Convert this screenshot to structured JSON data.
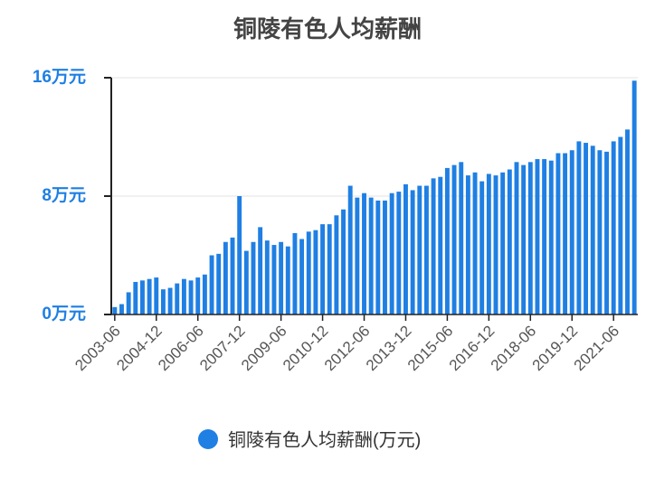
{
  "chart_data": {
    "type": "bar",
    "title": "铜陵有色人均薪酬",
    "categories": [
      "2003-06",
      null,
      null,
      null,
      null,
      null,
      "2004-12",
      null,
      null,
      null,
      null,
      null,
      "2006-06",
      null,
      null,
      null,
      null,
      null,
      "2007-12",
      null,
      null,
      null,
      null,
      null,
      "2009-06",
      null,
      null,
      null,
      null,
      null,
      "2010-12",
      null,
      null,
      null,
      null,
      null,
      "2012-06",
      null,
      null,
      null,
      null,
      null,
      "2013-12",
      null,
      null,
      null,
      null,
      null,
      "2015-06",
      null,
      null,
      null,
      null,
      null,
      "2016-12",
      null,
      null,
      null,
      null,
      null,
      "2018-06",
      null,
      null,
      null,
      null,
      null,
      "2019-12",
      null,
      null,
      null,
      null,
      null,
      "2021-06",
      null,
      null,
      null
    ],
    "series": [
      {
        "name": "铜陵有色人均薪酬(万元)",
        "color": "#1f7fe3",
        "values": [
          0.5,
          0.7,
          1.5,
          2.2,
          2.3,
          2.4,
          2.5,
          1.7,
          1.8,
          2.1,
          2.4,
          2.3,
          2.5,
          2.7,
          4.0,
          4.1,
          4.9,
          5.2,
          8.0,
          4.3,
          4.9,
          5.9,
          5.0,
          4.7,
          4.9,
          4.6,
          5.5,
          5.1,
          5.6,
          5.7,
          6.1,
          6.1,
          6.7,
          7.1,
          8.7,
          7.9,
          8.2,
          7.9,
          7.7,
          7.7,
          8.2,
          8.3,
          8.8,
          8.4,
          8.7,
          8.7,
          9.2,
          9.3,
          9.9,
          10.1,
          10.3,
          9.4,
          9.6,
          9.0,
          9.5,
          9.4,
          9.6,
          9.8,
          10.3,
          10.1,
          10.3,
          10.5,
          10.5,
          10.4,
          10.9,
          10.9,
          11.1,
          11.7,
          11.6,
          11.4,
          11.1,
          11.0,
          11.7,
          12.0,
          12.5,
          15.8
        ]
      }
    ],
    "ylim": [
      0,
      16
    ],
    "yticks": [
      {
        "value": 0,
        "label": "0万元"
      },
      {
        "value": 8,
        "label": "8万元"
      },
      {
        "value": 16,
        "label": "16万元"
      }
    ],
    "grid": true
  }
}
